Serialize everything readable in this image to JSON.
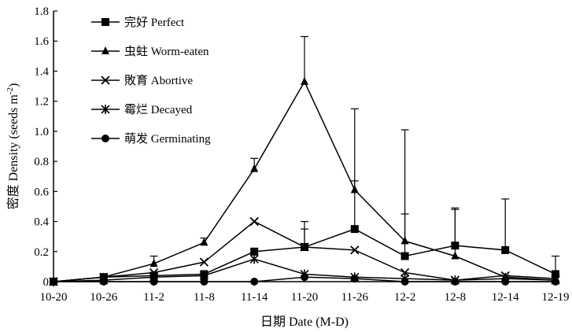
{
  "chart_data": {
    "type": "line",
    "xlabel": "日期 Date (M-D)",
    "ylabel_main": "密度 Density (seeds m",
    "ylabel_sup": "-2",
    "ylabel_close": ")",
    "categories": [
      "10-20",
      "10-26",
      "11-2",
      "11-8",
      "11-14",
      "11-20",
      "11-26",
      "12-2",
      "12-8",
      "12-14",
      "12-19"
    ],
    "ylim": [
      0,
      1.8
    ],
    "yticks": [
      0,
      0.2,
      0.4,
      0.6,
      0.8,
      1.0,
      1.2,
      1.4,
      1.6,
      1.8
    ],
    "ytick_labels": [
      "0",
      "0.2",
      "0.4",
      "0.6",
      "0.8",
      "1.0",
      "1.2",
      "1.4",
      "1.6",
      "1.8"
    ],
    "grid": false,
    "legend_position": "top-left",
    "series": [
      {
        "name": "完好 Perfect",
        "marker": "square",
        "values": [
          0,
          0.03,
          0.04,
          0.05,
          0.2,
          0.23,
          0.35,
          0.17,
          0.24,
          0.21,
          0.05
        ],
        "errors": [
          0,
          0,
          0,
          0,
          0.02,
          0.17,
          0.32,
          0.84,
          0.25,
          0.34,
          0.12
        ]
      },
      {
        "name": "虫蛀 Worm-eaten",
        "marker": "triangle",
        "values": [
          0,
          0.03,
          0.12,
          0.26,
          0.75,
          1.33,
          0.61,
          0.27,
          0.17,
          0.03,
          0.01
        ],
        "errors": [
          0,
          0,
          0.05,
          0.03,
          0.07,
          0.3,
          0.54,
          0.18,
          0.31,
          0,
          0
        ]
      },
      {
        "name": "敗育 Abortive",
        "marker": "x",
        "values": [
          0,
          0.03,
          0.06,
          0.13,
          0.4,
          0.23,
          0.21,
          0.06,
          0.01,
          0.04,
          0.02
        ],
        "errors": [
          0,
          0,
          0,
          0,
          0,
          0.12,
          0,
          0,
          0,
          0,
          0
        ]
      },
      {
        "name": "霉烂 Decayed",
        "marker": "star",
        "values": [
          0,
          0.01,
          0.03,
          0.04,
          0.15,
          0.05,
          0.03,
          0.02,
          0.01,
          0.02,
          0.01
        ],
        "errors": [
          0,
          0,
          0,
          0,
          0,
          0,
          0,
          0,
          0,
          0,
          0
        ]
      },
      {
        "name": "萌发 Germinating",
        "marker": "circle",
        "values": [
          0,
          0,
          0,
          0,
          0,
          0.03,
          0.02,
          0,
          0,
          0,
          0
        ],
        "errors": [
          0,
          0,
          0,
          0,
          0,
          0,
          0,
          0,
          0,
          0,
          0
        ]
      }
    ]
  }
}
